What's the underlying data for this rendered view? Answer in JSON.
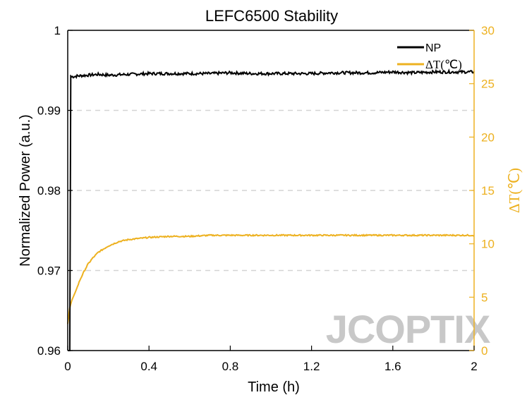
{
  "chart_data": {
    "type": "line",
    "title": "LEFC6500 Stability",
    "xlabel": "Time (h)",
    "ylabel_left": "Normalized Power (a.u.)",
    "ylabel_right": "ΔT(℃)",
    "xlim": [
      0,
      2
    ],
    "ylim_left": [
      0.96,
      1
    ],
    "ylim_right": [
      0,
      30
    ],
    "x_ticks": [
      "0",
      "0.4",
      "0.8",
      "1.2",
      "1.6",
      "2"
    ],
    "x_tick_values": [
      0,
      0.4,
      0.8,
      1.2,
      1.6,
      2
    ],
    "y_left_ticks": [
      "0.96",
      "0.97",
      "0.98",
      "0.99",
      "1"
    ],
    "y_left_tick_values": [
      0.96,
      0.97,
      0.98,
      0.99,
      1
    ],
    "y_right_ticks": [
      "0",
      "5",
      "10",
      "15",
      "20",
      "25",
      "30"
    ],
    "y_right_tick_values": [
      0,
      5,
      10,
      15,
      20,
      25,
      30
    ],
    "grid": "horizontal dashed at left-axis major ticks",
    "legend_position": "top-right",
    "watermark": "JCOPTIX",
    "colors": {
      "np": "#000000",
      "dt": "#EDB120",
      "grid": "#d4d4d4",
      "watermark": "#c8c8c8"
    },
    "series": [
      {
        "name": "NP",
        "axis": "left",
        "x": [
          0,
          0.01,
          0.015,
          0.02,
          0.05,
          0.1,
          0.15,
          0.2,
          0.3,
          0.4,
          0.5,
          0.6,
          0.7,
          0.8,
          0.9,
          1.0,
          1.1,
          1.2,
          1.3,
          1.4,
          1.5,
          1.6,
          1.7,
          1.8,
          1.9,
          2.0
        ],
        "values": [
          0.96,
          0.96,
          0.9943,
          0.9942,
          0.9943,
          0.9944,
          0.9945,
          0.9944,
          0.9945,
          0.9946,
          0.9946,
          0.9946,
          0.9946,
          0.9947,
          0.9946,
          0.9946,
          0.9946,
          0.9946,
          0.9947,
          0.9947,
          0.9947,
          0.9948,
          0.9947,
          0.9948,
          0.9948,
          0.9948
        ]
      },
      {
        "name": "ΔT(℃)",
        "axis": "right",
        "x": [
          0,
          0.01,
          0.02,
          0.04,
          0.06,
          0.08,
          0.1,
          0.12,
          0.15,
          0.2,
          0.25,
          0.3,
          0.4,
          0.5,
          0.6,
          0.7,
          0.8,
          1.0,
          1.2,
          1.4,
          1.6,
          1.8,
          2.0
        ],
        "values": [
          2.5,
          4.0,
          4.7,
          5.6,
          6.6,
          7.4,
          8.1,
          8.6,
          9.2,
          9.8,
          10.2,
          10.4,
          10.6,
          10.7,
          10.7,
          10.8,
          10.8,
          10.8,
          10.8,
          10.8,
          10.8,
          10.8,
          10.8
        ]
      }
    ]
  }
}
